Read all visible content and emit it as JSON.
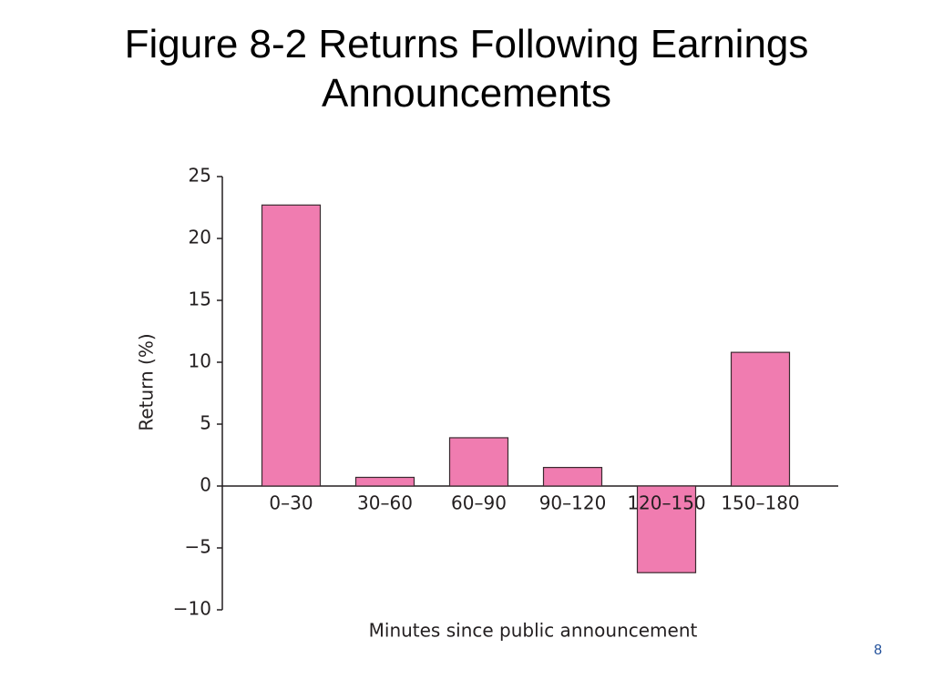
{
  "chart_data": {
    "type": "bar",
    "title": "Figure 8-2 Returns Following Earnings Announcements",
    "x_label": "Minutes since public announcement",
    "y_label": "Return (%)",
    "categories": [
      "0–30",
      "30–60",
      "60–90",
      "90–120",
      "120–150",
      "150–180"
    ],
    "values": [
      22.7,
      0.7,
      3.9,
      1.5,
      -7.0,
      10.8
    ],
    "color": "#f07cb0",
    "ylim": [
      -10,
      25
    ],
    "yticks": [
      {
        "value": -10,
        "label": "−10"
      },
      {
        "value": -5,
        "label": "−5"
      },
      0,
      5,
      10,
      15,
      20,
      25
    ],
    "grid": false
  },
  "page_number": "8"
}
